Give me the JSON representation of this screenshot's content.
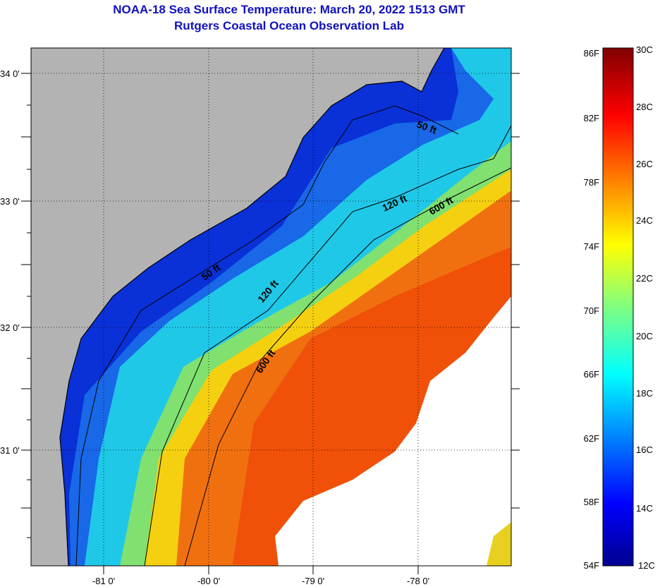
{
  "title": {
    "line1": "NOAA-18 Sea Surface Temperature:  March 20, 2022 1513 GMT",
    "line2": "Rutgers Coastal Ocean Observation Lab"
  },
  "map": {
    "lat_labels": [
      "34 0'",
      "33 0'",
      "32 0'",
      "31 0'"
    ],
    "lon_labels": [
      "-81 0'",
      "-80 0'",
      "-79 0'",
      "-78 0'"
    ],
    "contour_labels": [
      "50 ft",
      "120 ft",
      "600 ft",
      "50 ft",
      "120 ft",
      "600 ft"
    ],
    "colors": {
      "land": "#b3b3b3",
      "cloud": "#ffffff"
    }
  },
  "colorbar": {
    "f_labels": [
      "86F",
      "82F",
      "78F",
      "74F",
      "70F",
      "66F",
      "62F",
      "58F",
      "54F"
    ],
    "c_labels": [
      "30C",
      "28C",
      "26C",
      "24C",
      "22C",
      "20C",
      "18C",
      "16C",
      "14C",
      "12C"
    ]
  }
}
